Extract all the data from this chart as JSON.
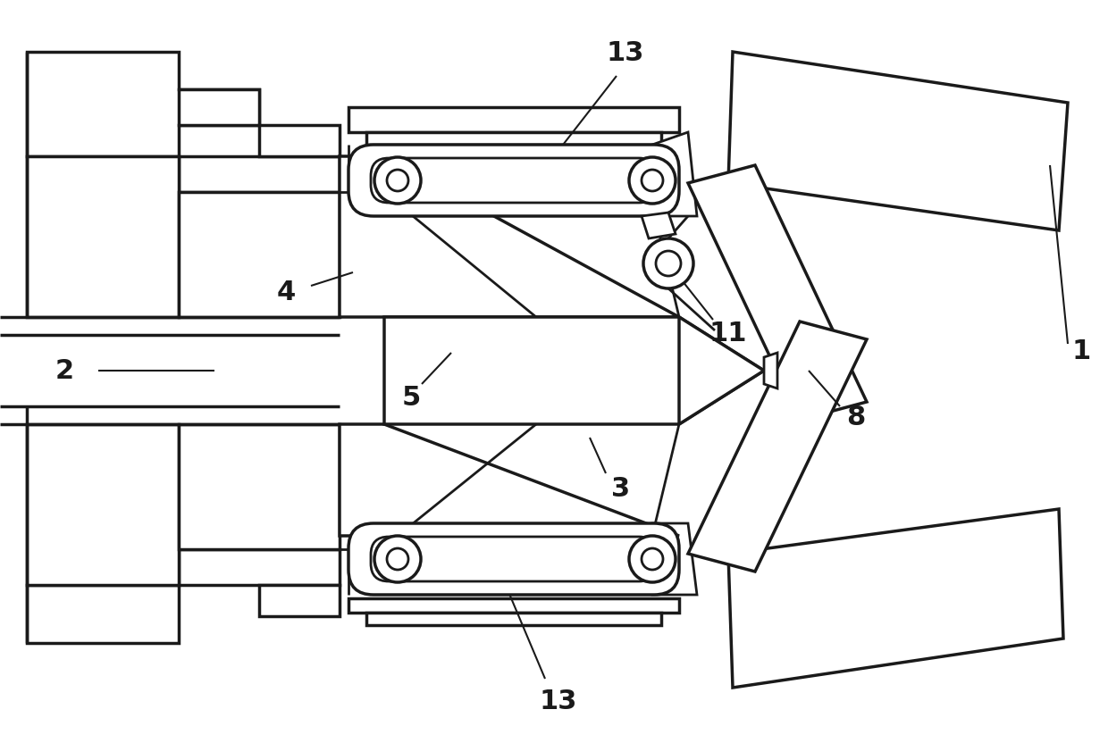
{
  "bg": "#ffffff",
  "lc": "#1a1a1a",
  "lw": 2.5,
  "lw2": 2.0,
  "lw3": 1.5,
  "fs": 22,
  "fig_w": 12.4,
  "fig_h": 8.32
}
